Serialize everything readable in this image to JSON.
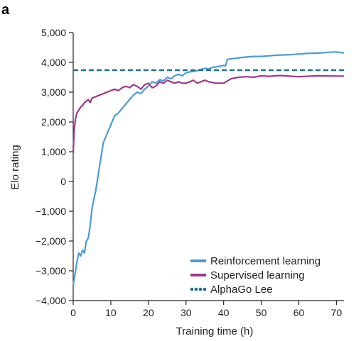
{
  "chart_data": {
    "type": "line",
    "panel_label": "a",
    "title": "",
    "xlabel": "Training time (h)",
    "ylabel": "Elo rating",
    "xlim": [
      0,
      72
    ],
    "ylim": [
      -4000,
      5000
    ],
    "x_ticks": [
      0,
      10,
      20,
      30,
      40,
      50,
      60,
      70
    ],
    "y_ticks": [
      -4000,
      -3000,
      -2000,
      -1000,
      0,
      1000,
      2000,
      3000,
      4000,
      5000
    ],
    "x_tick_labels": [
      "0",
      "10",
      "20",
      "30",
      "40",
      "50",
      "60",
      "70"
    ],
    "y_tick_labels": [
      "−4,000",
      "−3,000",
      "−2,000",
      "−1,000",
      "0",
      "1,000",
      "2,000",
      "3,000",
      "4,000",
      "5,000"
    ],
    "grid": false,
    "legend_position": "bottom-right",
    "series": [
      {
        "name": "Reinforcement learning",
        "color": "#4a9bd8",
        "style": "solid",
        "x": [
          0,
          0.5,
          1,
          1.5,
          2,
          2.5,
          3,
          3.5,
          4,
          4.5,
          5,
          5.5,
          6,
          6.5,
          7,
          7.5,
          8,
          9,
          10,
          11,
          12,
          13,
          14,
          15,
          16,
          17,
          18,
          19,
          20,
          21,
          22,
          23,
          24,
          25,
          26,
          27,
          28,
          29,
          30,
          31,
          32,
          33,
          34,
          35,
          36,
          37,
          38,
          39,
          40,
          40.5,
          41,
          42,
          44,
          46,
          48,
          50,
          52,
          54,
          56,
          58,
          60,
          62,
          64,
          66,
          68,
          70,
          72
        ],
        "y": [
          -3500,
          -3100,
          -2700,
          -2400,
          -2500,
          -2300,
          -2400,
          -2000,
          -1900,
          -1500,
          -900,
          -600,
          -300,
          100,
          500,
          900,
          1300,
          1600,
          1900,
          2200,
          2300,
          2450,
          2600,
          2750,
          2900,
          3000,
          2950,
          3100,
          3200,
          3350,
          3300,
          3420,
          3380,
          3500,
          3450,
          3550,
          3600,
          3550,
          3650,
          3680,
          3700,
          3720,
          3760,
          3800,
          3780,
          3830,
          3850,
          3870,
          3900,
          3880,
          4100,
          4120,
          4150,
          4180,
          4200,
          4200,
          4220,
          4240,
          4250,
          4260,
          4280,
          4300,
          4310,
          4320,
          4340,
          4350,
          4320
        ]
      },
      {
        "name": "Supervised learning",
        "color": "#a2378a",
        "style": "solid",
        "x": [
          0,
          0.3,
          0.6,
          1,
          1.5,
          2,
          2.5,
          3,
          3.5,
          4,
          4.5,
          5,
          6,
          7,
          8,
          9,
          10,
          11,
          12,
          13,
          14,
          15,
          16,
          17,
          18,
          19,
          20,
          21,
          22,
          23,
          24,
          25,
          26,
          27,
          28,
          29,
          30,
          31,
          32,
          33,
          34,
          35,
          36,
          38,
          40,
          42,
          44,
          46,
          48,
          50,
          52,
          55,
          60,
          65,
          70,
          72
        ],
        "y": [
          1000,
          1800,
          2100,
          2300,
          2400,
          2500,
          2550,
          2650,
          2700,
          2750,
          2650,
          2800,
          2850,
          2900,
          2950,
          3000,
          3050,
          3100,
          3050,
          3150,
          3200,
          3150,
          3250,
          3200,
          3100,
          3250,
          3300,
          3150,
          3200,
          3350,
          3300,
          3400,
          3350,
          3300,
          3350,
          3300,
          3300,
          3350,
          3400,
          3300,
          3350,
          3400,
          3350,
          3300,
          3300,
          3450,
          3500,
          3520,
          3500,
          3550,
          3530,
          3560,
          3520,
          3550,
          3540,
          3540
        ]
      },
      {
        "name": "AlphaGo Lee",
        "color": "#1c6e8c",
        "style": "dashed",
        "x": [
          0,
          72
        ],
        "y": [
          3739,
          3739
        ]
      }
    ]
  }
}
